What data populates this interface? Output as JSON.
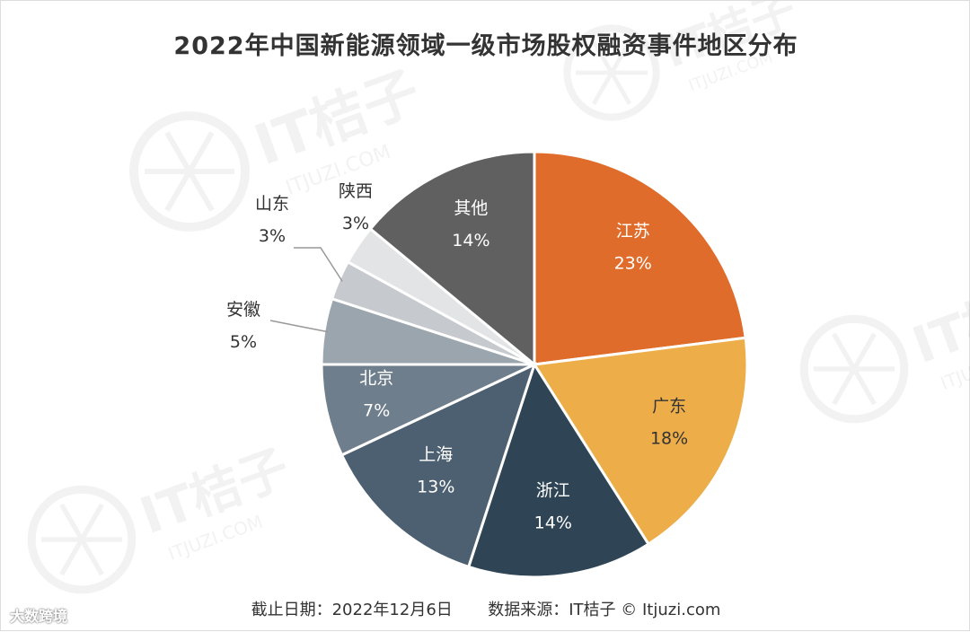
{
  "title": "2022年中国新能源领域一级市场股权融资事件地区分布",
  "footer": {
    "date_text": "截止日期：2022年12月6日",
    "source_text": "数据来源：IT桔子 © Itjuzi.com"
  },
  "watermark": {
    "brand": "IT桔子",
    "site": "ITJUZI.COM",
    "badge": "大数跨境"
  },
  "chart_data": {
    "type": "pie",
    "start_angle_deg": 0,
    "slices": [
      {
        "label": "江苏",
        "value": 23,
        "value_label": "23%",
        "color": "#E06C2B",
        "text_color": "#ffffff",
        "label_pos": "inside"
      },
      {
        "label": "广东",
        "value": 18,
        "value_label": "18%",
        "color": "#EDAE4A",
        "text_color": "#333333",
        "label_pos": "inside"
      },
      {
        "label": "浙江",
        "value": 14,
        "value_label": "14%",
        "color": "#2F4556",
        "text_color": "#ffffff",
        "label_pos": "inside"
      },
      {
        "label": "上海",
        "value": 13,
        "value_label": "13%",
        "color": "#4D6071",
        "text_color": "#ffffff",
        "label_pos": "inside"
      },
      {
        "label": "北京",
        "value": 7,
        "value_label": "7%",
        "color": "#6F7E8C",
        "text_color": "#ffffff",
        "label_pos": "inside"
      },
      {
        "label": "安徽",
        "value": 5,
        "value_label": "5%",
        "color": "#9BA5AE",
        "text_color": "#333333",
        "label_pos": "outside"
      },
      {
        "label": "山东",
        "value": 3,
        "value_label": "3%",
        "color": "#C6CACE",
        "text_color": "#333333",
        "label_pos": "outside"
      },
      {
        "label": "陕西",
        "value": 3,
        "value_label": "3%",
        "color": "#E3E4E6",
        "text_color": "#333333",
        "label_pos": "outside"
      },
      {
        "label": "其他",
        "value": 14,
        "value_label": "14%",
        "color": "#606060",
        "text_color": "#ffffff",
        "label_pos": "inside"
      }
    ]
  }
}
